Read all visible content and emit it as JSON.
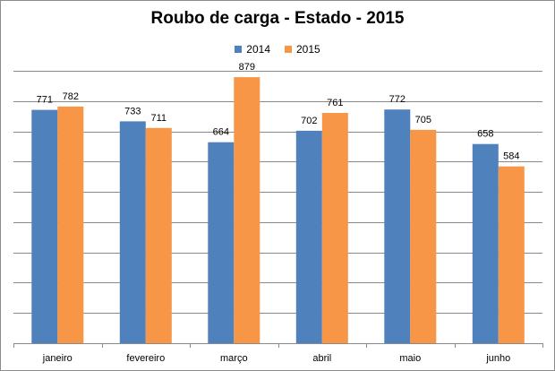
{
  "chart_data": {
    "type": "bar",
    "title": "Roubo de carga - Estado - 2015",
    "categories": [
      "janeiro",
      "fevereiro",
      "março",
      "abril",
      "maio",
      "junho"
    ],
    "series": [
      {
        "name": "2014",
        "color": "#4f81bd",
        "values": [
          771,
          733,
          664,
          702,
          772,
          658
        ]
      },
      {
        "name": "2015",
        "color": "#f79646",
        "values": [
          782,
          711,
          879,
          761,
          705,
          584
        ]
      }
    ],
    "xlabel": "",
    "ylabel": "",
    "ylim": [
      0,
      900
    ],
    "grid": true,
    "legend": "top-center"
  }
}
